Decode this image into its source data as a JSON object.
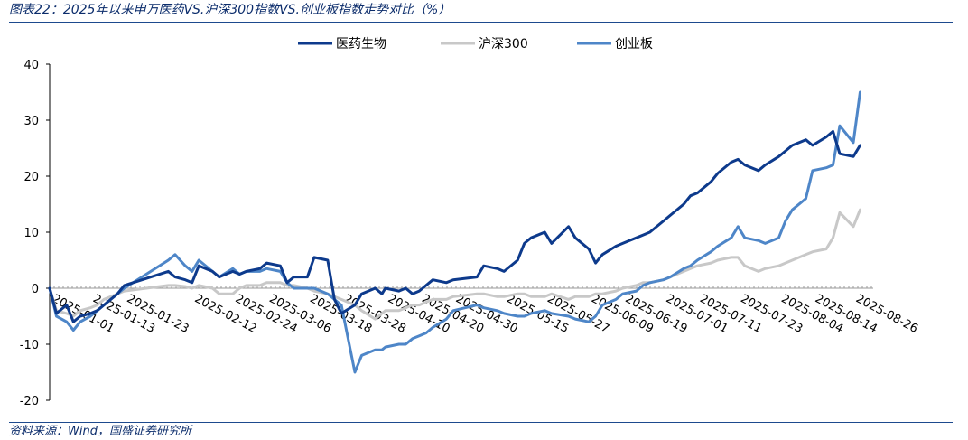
{
  "figure": {
    "title": "图表22：2025年以来申万医药VS.沪深300指数VS.创业板指数走势对比（%）",
    "source": "资料来源：Wind，国盛证券研究所"
  },
  "chart_data": {
    "type": "line",
    "title": "",
    "xlabel": "",
    "ylabel": "",
    "ylim": [
      -20,
      40
    ],
    "y_ticks": [
      -20,
      -10,
      0,
      10,
      20,
      30,
      40
    ],
    "grid": false,
    "legend_position": "top-center",
    "x_tick_labels": [
      "2025-01-01",
      "2025-01-13",
      "2025-01-23",
      "2025-02-12",
      "2025-02-24",
      "2025-03-06",
      "2025-03-18",
      "2025-03-28",
      "2025-04-10",
      "2025-04-20",
      "2025-04-30",
      "2025-05-15",
      "2025-05-27",
      "2025-06-09",
      "2025-06-19",
      "2025-07-01",
      "2025-07-11",
      "2025-07-23",
      "2025-08-04",
      "2025-08-14",
      "2025-08-26"
    ],
    "x": [
      "2025-01-01",
      "2025-01-03",
      "2025-01-06",
      "2025-01-08",
      "2025-01-10",
      "2025-01-13",
      "2025-01-15",
      "2025-01-17",
      "2025-01-21",
      "2025-01-23",
      "2025-02-05",
      "2025-02-07",
      "2025-02-10",
      "2025-02-12",
      "2025-02-14",
      "2025-02-18",
      "2025-02-20",
      "2025-02-24",
      "2025-02-26",
      "2025-02-28",
      "2025-03-04",
      "2025-03-06",
      "2025-03-10",
      "2025-03-12",
      "2025-03-14",
      "2025-03-18",
      "2025-03-20",
      "2025-03-24",
      "2025-03-26",
      "2025-03-28",
      "2025-04-01",
      "2025-04-03",
      "2025-04-07",
      "2025-04-09",
      "2025-04-10",
      "2025-04-14",
      "2025-04-16",
      "2025-04-18",
      "2025-04-20",
      "2025-04-22",
      "2025-04-24",
      "2025-04-28",
      "2025-04-30",
      "2025-05-07",
      "2025-05-09",
      "2025-05-13",
      "2025-05-15",
      "2025-05-19",
      "2025-05-21",
      "2025-05-23",
      "2025-05-27",
      "2025-05-29",
      "2025-06-03",
      "2025-06-05",
      "2025-06-09",
      "2025-06-11",
      "2025-06-13",
      "2025-06-17",
      "2025-06-19",
      "2025-06-23",
      "2025-06-25",
      "2025-06-27",
      "2025-07-01",
      "2025-07-03",
      "2025-07-07",
      "2025-07-09",
      "2025-07-11",
      "2025-07-15",
      "2025-07-17",
      "2025-07-21",
      "2025-07-23",
      "2025-07-25",
      "2025-07-29",
      "2025-07-31",
      "2025-08-04",
      "2025-08-06",
      "2025-08-08",
      "2025-08-12",
      "2025-08-14",
      "2025-08-18",
      "2025-08-20",
      "2025-08-22",
      "2025-08-26",
      "2025-08-28"
    ],
    "series": [
      {
        "name": "医药生物",
        "color": "#0d3a8c",
        "values": [
          0,
          -4.5,
          -3,
          -6,
          -5,
          -4.5,
          -4,
          -3,
          -1,
          0.5,
          3,
          2,
          1.5,
          1,
          4,
          3,
          2,
          3,
          2.5,
          3,
          3.5,
          4.5,
          4,
          1,
          2,
          2,
          5.5,
          5,
          -2,
          -4.5,
          -3,
          -1,
          0,
          -1,
          0,
          -0.5,
          0,
          -1,
          -0.5,
          0.5,
          1.5,
          1,
          1.5,
          2,
          4,
          3.5,
          3,
          5,
          8,
          9,
          10,
          8,
          11,
          9,
          7,
          4.5,
          6,
          7.5,
          8,
          9,
          9.5,
          10,
          12,
          13,
          15,
          16.5,
          17,
          19,
          20.5,
          22.5,
          23,
          22,
          21,
          22,
          23.5,
          24.5,
          25.5,
          26.5,
          25.5,
          27,
          28,
          24,
          23.5,
          25.5
        ]
      },
      {
        "name": "沪深300",
        "color": "#c8c8c8",
        "values": [
          0,
          -4,
          -4.5,
          -5,
          -4,
          -3.5,
          -3,
          -2,
          -1,
          -0.5,
          0.5,
          0.5,
          0.3,
          0,
          0.5,
          0,
          -1,
          -1,
          0,
          0.5,
          0.5,
          1,
          1,
          0.5,
          0.5,
          0,
          -0.5,
          -1,
          -1.5,
          -2,
          -3,
          -4,
          -5.5,
          -4.5,
          -4,
          -4,
          -3.5,
          -3,
          -3,
          -2.5,
          -2,
          -2,
          -1.5,
          -1,
          -1,
          -1.5,
          -1.5,
          -1,
          -1,
          -1.5,
          -1.5,
          -1,
          -2,
          -1.5,
          -1.5,
          -1,
          -1,
          -0.5,
          0,
          0.5,
          1,
          1,
          1.5,
          2,
          3,
          3.5,
          4,
          4.5,
          5,
          5.5,
          5.5,
          4,
          3,
          3.5,
          4,
          4.5,
          5,
          6,
          6.5,
          7,
          9,
          13.5,
          11,
          14
        ]
      },
      {
        "name": "创业板",
        "color": "#4e86c8",
        "values": [
          0,
          -5,
          -6,
          -7.5,
          -6,
          -5,
          -4,
          -3,
          -1,
          0,
          5,
          6,
          4,
          3,
          5,
          3,
          2,
          3.5,
          2.5,
          3,
          3,
          3.5,
          3,
          1,
          0,
          0,
          0,
          -1,
          -2,
          -3,
          -15,
          -12,
          -11,
          -11,
          -10.5,
          -10,
          -10,
          -9,
          -8.5,
          -8,
          -7,
          -5.5,
          -4,
          -3,
          -3.5,
          -4,
          -4.5,
          -5,
          -5,
          -4.5,
          -4,
          -4.5,
          -5,
          -5.5,
          -6,
          -5,
          -3,
          -2,
          -1,
          -0.5,
          0.5,
          1,
          1.5,
          2,
          3.5,
          4,
          5,
          6.5,
          7.5,
          9,
          11,
          9,
          8.5,
          8,
          9,
          12,
          14,
          16,
          21,
          21.5,
          22,
          29,
          26,
          35
        ]
      }
    ]
  }
}
